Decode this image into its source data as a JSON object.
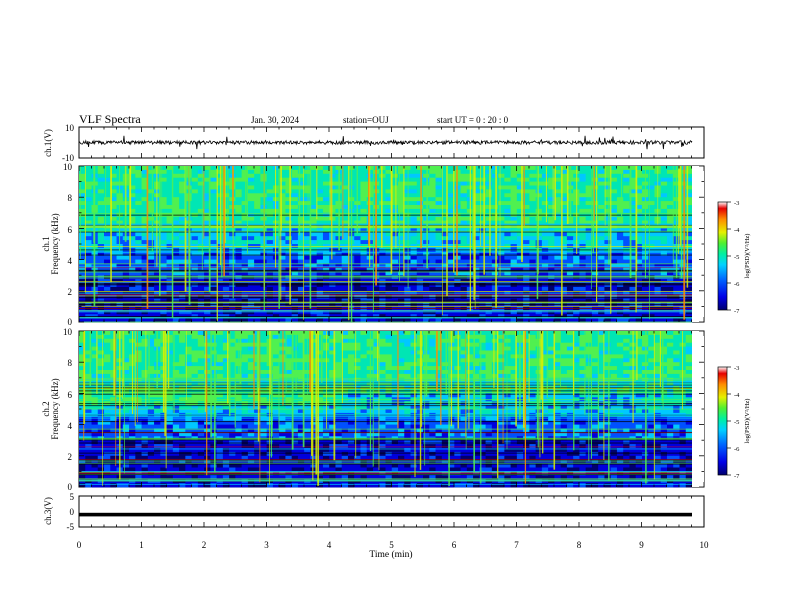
{
  "header": {
    "title": "VLF Spectra",
    "date": "Jan. 30, 2024",
    "station": "station=OUJ",
    "start_time": "start UT =  0 : 20 : 0"
  },
  "colors": {
    "spectrogram": [
      "#00006e",
      "#0000dc",
      "#0050ff",
      "#00c8ff",
      "#00e6b4",
      "#50f050",
      "#dcf000",
      "#ff8c00",
      "#e60000"
    ],
    "waveform": "#000000"
  },
  "chart_data": [
    {
      "type": "line",
      "panel": "ch1-waveform",
      "ylabel": "ch.1(V)",
      "ylim": [
        -10,
        10
      ],
      "yticks": [
        "10",
        "-10"
      ],
      "xlim": [
        0,
        10
      ],
      "note": "noisy waveform centered near 0 V with spikes"
    },
    {
      "type": "heatmap",
      "panel": "ch1-spectrogram",
      "ylabel": "ch.1",
      "ylabel2": "Frequency (kHz)",
      "ylim": [
        0,
        10
      ],
      "yticks": [
        "0",
        "2",
        "4",
        "6",
        "8",
        "10"
      ],
      "xlim": [
        0,
        10
      ],
      "colorbar": {
        "label": "log(PSD)(V²/Hz)",
        "range": [
          -7,
          -3
        ],
        "ticks": [
          "-3",
          "-4",
          "-5",
          "-6",
          "-7"
        ]
      }
    },
    {
      "type": "heatmap",
      "panel": "ch2-spectrogram",
      "ylabel": "ch.2",
      "ylabel2": "Frequency (kHz)",
      "ylim": [
        0,
        10
      ],
      "yticks": [
        "0",
        "2",
        "4",
        "6",
        "8",
        "10"
      ],
      "xlim": [
        0,
        10
      ],
      "colorbar": {
        "label": "log(PSD)(V²/Hz)",
        "range": [
          -7,
          -3
        ],
        "ticks": [
          "-3",
          "-4",
          "-5",
          "-6",
          "-7"
        ]
      }
    },
    {
      "type": "line",
      "panel": "ch3-waveform",
      "ylabel": "ch.3(V)",
      "ylim": [
        -5,
        5
      ],
      "yticks": [
        "5",
        "0",
        "-5"
      ],
      "xlim": [
        0,
        10
      ],
      "note": "flat line near -1 V"
    }
  ],
  "xaxis": {
    "label": "Time (min)",
    "ticks": [
      "0",
      "1",
      "2",
      "3",
      "4",
      "5",
      "6",
      "7",
      "8",
      "9",
      "10"
    ]
  }
}
